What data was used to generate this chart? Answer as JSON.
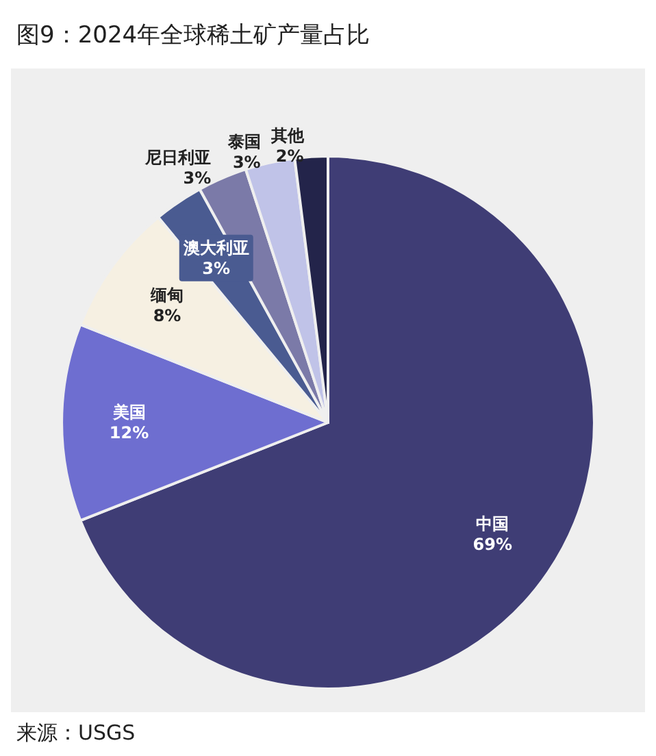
{
  "chart_data": {
    "type": "pie",
    "title": "图9：2024年全球稀土矿产量占比",
    "categories": [
      "中国",
      "美国",
      "缅甸",
      "澳大利亚",
      "尼日利亚",
      "泰国",
      "其他"
    ],
    "values": [
      69,
      12,
      8,
      3,
      3,
      3,
      2
    ],
    "colors": [
      "#3f3d75",
      "#6e6ed0",
      "#f6f0e2",
      "#4a5b91",
      "#7b7aa8",
      "#c0c3e8",
      "#23244a"
    ],
    "value_labels": [
      "69%",
      "12%",
      "8%",
      "3%",
      "3%",
      "3%",
      "2%"
    ],
    "legend": false,
    "annotations": [
      "来源：USGS"
    ]
  }
}
